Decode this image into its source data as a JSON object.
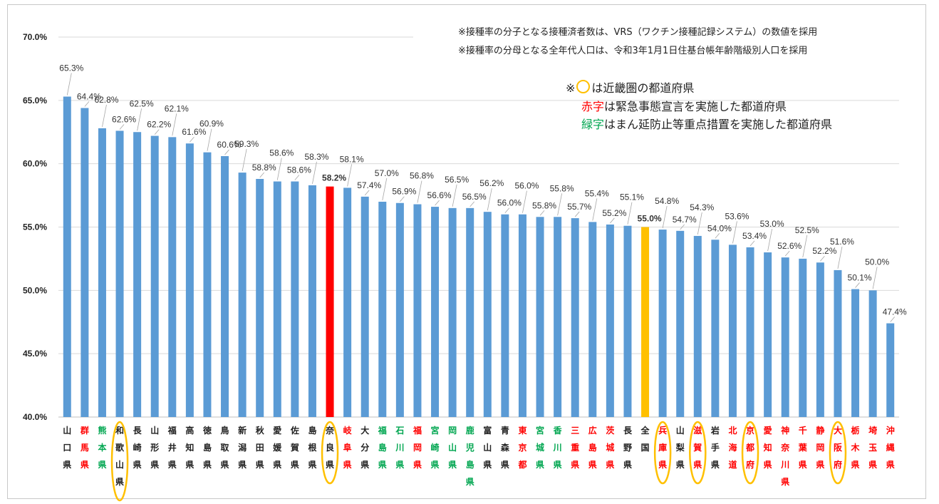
{
  "chart_data": {
    "type": "bar",
    "ylim": [
      40,
      70
    ],
    "yticks": [
      "40.0%",
      "45.0%",
      "50.0%",
      "55.0%",
      "60.0%",
      "65.0%",
      "70.0%"
    ],
    "grid": true,
    "categories": [
      {
        "label": "山口県",
        "value": 65.3,
        "text": "65.3%",
        "color": "black",
        "bar": "normal",
        "circle": false
      },
      {
        "label": "群馬県",
        "value": 64.4,
        "text": "64.4%",
        "color": "red",
        "bar": "normal",
        "circle": false
      },
      {
        "label": "熊本県",
        "value": 62.8,
        "text": "62.8%",
        "color": "green",
        "bar": "normal",
        "circle": false
      },
      {
        "label": "和歌山県",
        "value": 62.6,
        "text": "62.6%",
        "color": "black",
        "bar": "normal",
        "circle": true
      },
      {
        "label": "長崎県",
        "value": 62.5,
        "text": "62.5%",
        "color": "black",
        "bar": "normal",
        "circle": false
      },
      {
        "label": "山形県",
        "value": 62.2,
        "text": "62.2%",
        "color": "black",
        "bar": "normal",
        "circle": false
      },
      {
        "label": "福井県",
        "value": 62.1,
        "text": "62.1%",
        "color": "black",
        "bar": "normal",
        "circle": false
      },
      {
        "label": "高知県",
        "value": 61.6,
        "text": "61.6%",
        "color": "black",
        "bar": "normal",
        "circle": false
      },
      {
        "label": "徳島県",
        "value": 60.9,
        "text": "60.9%",
        "color": "black",
        "bar": "normal",
        "circle": false
      },
      {
        "label": "鳥取県",
        "value": 60.6,
        "text": "60.6%",
        "color": "black",
        "bar": "normal",
        "circle": false
      },
      {
        "label": "新潟県",
        "value": 59.3,
        "text": "59.3%",
        "color": "black",
        "bar": "normal",
        "circle": false
      },
      {
        "label": "秋田県",
        "value": 58.8,
        "text": "58.8%",
        "color": "black",
        "bar": "normal",
        "circle": false
      },
      {
        "label": "愛媛県",
        "value": 58.6,
        "text": "58.6%",
        "color": "black",
        "bar": "normal",
        "circle": false
      },
      {
        "label": "佐賀県",
        "value": 58.6,
        "text": "58.6%",
        "color": "black",
        "bar": "normal",
        "circle": false
      },
      {
        "label": "島根県",
        "value": 58.3,
        "text": "58.3%",
        "color": "black",
        "bar": "normal",
        "circle": false
      },
      {
        "label": "奈良県",
        "value": 58.2,
        "text": "58.2%",
        "color": "black",
        "bar": "red",
        "circle": true
      },
      {
        "label": "岐阜県",
        "value": 58.1,
        "text": "58.1%",
        "color": "red",
        "bar": "normal",
        "circle": false
      },
      {
        "label": "大分県",
        "value": 57.4,
        "text": "57.4%",
        "color": "black",
        "bar": "normal",
        "circle": false
      },
      {
        "label": "福島県",
        "value": 57.0,
        "text": "57.0%",
        "color": "green",
        "bar": "normal",
        "circle": false
      },
      {
        "label": "石川県",
        "value": 56.9,
        "text": "56.9%",
        "color": "green",
        "bar": "normal",
        "circle": false
      },
      {
        "label": "福岡県",
        "value": 56.8,
        "text": "56.8%",
        "color": "red",
        "bar": "normal",
        "circle": false
      },
      {
        "label": "宮崎県",
        "value": 56.6,
        "text": "56.6%",
        "color": "green",
        "bar": "normal",
        "circle": false
      },
      {
        "label": "岡山県",
        "value": 56.5,
        "text": "56.5%",
        "color": "green",
        "bar": "normal",
        "circle": false
      },
      {
        "label": "鹿児島県",
        "value": 56.5,
        "text": "56.5%",
        "color": "green",
        "bar": "normal",
        "circle": false
      },
      {
        "label": "富山県",
        "value": 56.2,
        "text": "56.2%",
        "color": "black",
        "bar": "normal",
        "circle": false
      },
      {
        "label": "青森県",
        "value": 56.0,
        "text": "56.0%",
        "color": "black",
        "bar": "normal",
        "circle": false
      },
      {
        "label": "東京都",
        "value": 56.0,
        "text": "56.0%",
        "color": "red",
        "bar": "normal",
        "circle": false
      },
      {
        "label": "宮城県",
        "value": 55.8,
        "text": "55.8%",
        "color": "green",
        "bar": "normal",
        "circle": false
      },
      {
        "label": "香川県",
        "value": 55.8,
        "text": "55.8%",
        "color": "green",
        "bar": "normal",
        "circle": false
      },
      {
        "label": "三重県",
        "value": 55.7,
        "text": "55.7%",
        "color": "red",
        "bar": "normal",
        "circle": false
      },
      {
        "label": "広島県",
        "value": 55.4,
        "text": "55.4%",
        "color": "red",
        "bar": "normal",
        "circle": false
      },
      {
        "label": "茨城県",
        "value": 55.2,
        "text": "55.2%",
        "color": "red",
        "bar": "normal",
        "circle": false
      },
      {
        "label": "長野県",
        "value": 55.1,
        "text": "55.1%",
        "color": "black",
        "bar": "normal",
        "circle": false
      },
      {
        "label": "全国",
        "value": 55.0,
        "text": "55.0%",
        "color": "black",
        "bar": "national",
        "circle": false
      },
      {
        "label": "兵庫県",
        "value": 54.8,
        "text": "54.8%",
        "color": "red",
        "bar": "normal",
        "circle": true
      },
      {
        "label": "山梨県",
        "value": 54.7,
        "text": "54.7%",
        "color": "black",
        "bar": "normal",
        "circle": false
      },
      {
        "label": "滋賀県",
        "value": 54.3,
        "text": "54.3%",
        "color": "red",
        "bar": "normal",
        "circle": true
      },
      {
        "label": "岩手県",
        "value": 54.0,
        "text": "54.0%",
        "color": "black",
        "bar": "normal",
        "circle": false
      },
      {
        "label": "北海道",
        "value": 53.6,
        "text": "53.6%",
        "color": "red",
        "bar": "normal",
        "circle": false
      },
      {
        "label": "京都府",
        "value": 53.4,
        "text": "53.4%",
        "color": "red",
        "bar": "normal",
        "circle": true
      },
      {
        "label": "愛知県",
        "value": 53.0,
        "text": "53.0%",
        "color": "red",
        "bar": "normal",
        "circle": false
      },
      {
        "label": "神奈川県",
        "value": 52.6,
        "text": "52.6%",
        "color": "red",
        "bar": "normal",
        "circle": false
      },
      {
        "label": "千葉県",
        "value": 52.5,
        "text": "52.5%",
        "color": "red",
        "bar": "normal",
        "circle": false
      },
      {
        "label": "静岡県",
        "value": 52.2,
        "text": "52.2%",
        "color": "red",
        "bar": "normal",
        "circle": false
      },
      {
        "label": "大阪府",
        "value": 51.6,
        "text": "51.6%",
        "color": "red",
        "bar": "normal",
        "circle": true
      },
      {
        "label": "栃木県",
        "value": 50.1,
        "text": "50.1%",
        "color": "red",
        "bar": "normal",
        "circle": false
      },
      {
        "label": "埼玉県",
        "value": 50.0,
        "text": "50.0%",
        "color": "red",
        "bar": "normal",
        "circle": false
      },
      {
        "label": "沖縄県",
        "value": 47.4,
        "text": "47.4%",
        "color": "red",
        "bar": "normal",
        "circle": false
      }
    ],
    "colors": {
      "bar": "#5b9bd5",
      "bar_red": "#ff0000",
      "bar_national": "#ffc000",
      "text_red": "#ff0000",
      "text_green": "#00a650",
      "text_black": "#222222",
      "circle": "#ffc000"
    }
  },
  "notes": {
    "line1": "※接種率の分子となる接種済者数は、VRS（ワクチン接種記録システム）の数値を採用",
    "line2": "※接種率の分母となる全年代人口は、令和3年1月1日住基台帳年齢階級別人口を採用"
  },
  "legend": {
    "prefix": "※",
    "suffix": "は近畿圏の都道府県",
    "red_key": "赤字",
    "red_rest": "は緊急事態宣言を実施した都道府県",
    "green_key": "緑字",
    "green_rest": "はまん延防止等重点措置を実施した都道府県"
  }
}
